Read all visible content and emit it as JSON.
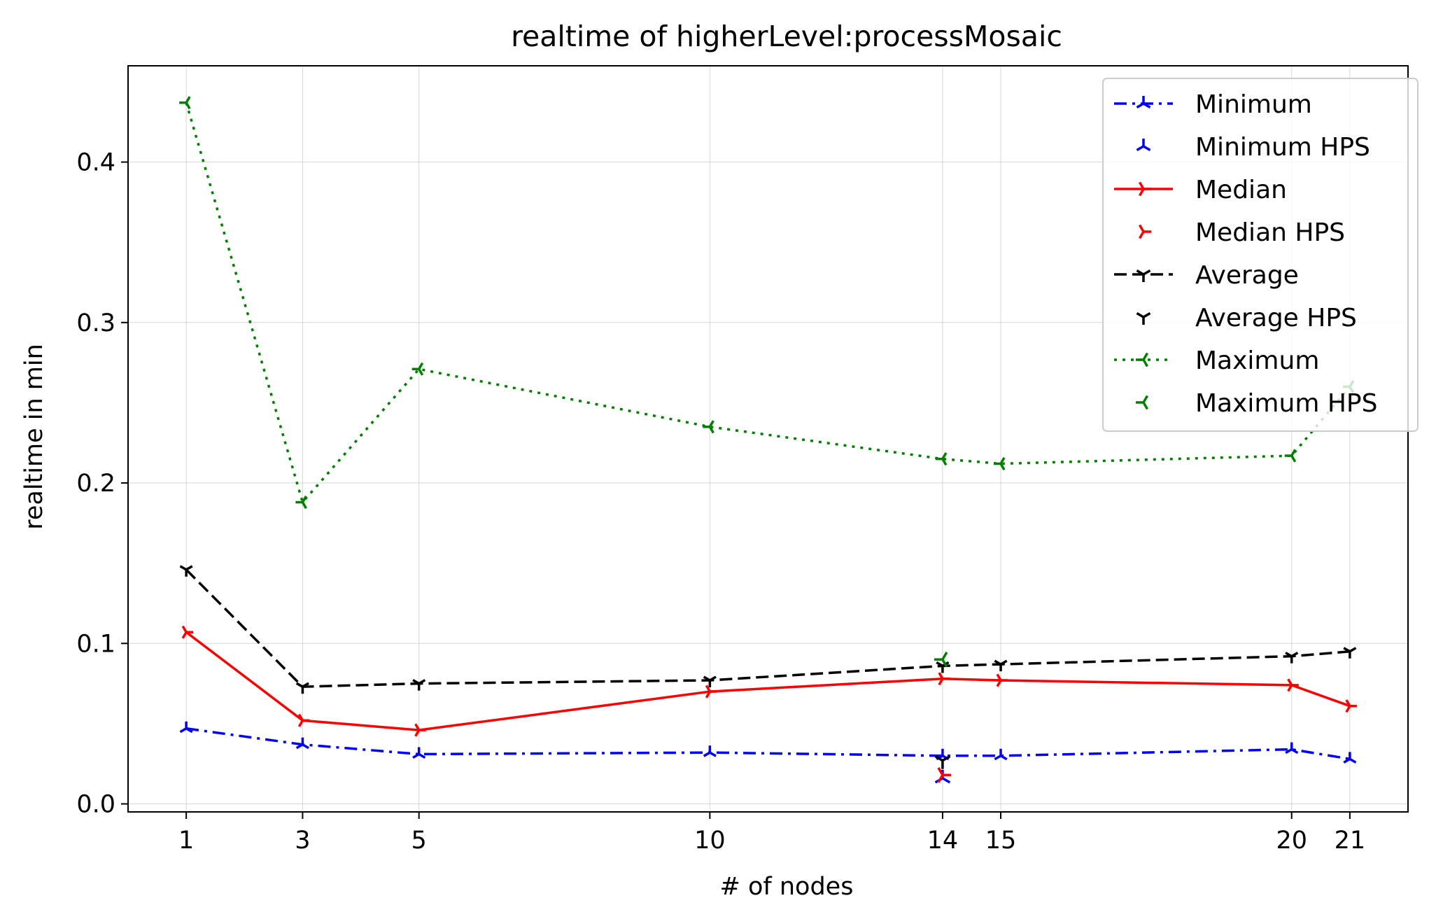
{
  "chart_data": {
    "type": "line",
    "title": "realtime of higherLevel:processMosaic",
    "xlabel": "# of nodes",
    "ylabel": "realtime in min",
    "xlim": [
      0,
      22
    ],
    "ylim": [
      -0.005,
      0.46
    ],
    "grid": true,
    "legend_position": "top-right",
    "x_ticks": [
      1,
      3,
      5,
      10,
      14,
      15,
      20,
      21
    ],
    "y_ticks": [
      0.0,
      0.1,
      0.2,
      0.3,
      0.4
    ],
    "y_tick_labels": [
      "0.0",
      "0.1",
      "0.2",
      "0.3",
      "0.4"
    ],
    "x": [
      1,
      3,
      5,
      10,
      14,
      15,
      20,
      21
    ],
    "series": [
      {
        "name": "Minimum",
        "color": "#0000ff",
        "style": "dashdot",
        "marker": "tri_up",
        "values": [
          0.047,
          0.037,
          0.031,
          0.032,
          0.03,
          0.03,
          0.034,
          0.028
        ]
      },
      {
        "name": "Median",
        "color": "#ff0000",
        "style": "solid",
        "marker": "tri_right",
        "values": [
          0.107,
          0.052,
          0.046,
          0.07,
          0.078,
          0.077,
          0.074,
          0.061
        ]
      },
      {
        "name": "Average",
        "color": "#000000",
        "style": "dashed",
        "marker": "tri_down",
        "values": [
          0.146,
          0.073,
          0.075,
          0.077,
          0.086,
          0.087,
          0.092,
          0.095
        ]
      },
      {
        "name": "Maximum",
        "color": "#008000",
        "style": "dotted",
        "marker": "tri_left",
        "values": [
          0.437,
          0.188,
          0.271,
          0.235,
          0.215,
          0.212,
          0.217,
          0.26
        ]
      }
    ],
    "hps_points": [
      {
        "name": "Minimum HPS",
        "color": "#0000ff",
        "marker": "tri_up",
        "x": 14,
        "y": 0.016
      },
      {
        "name": "Median HPS",
        "color": "#ff0000",
        "marker": "tri_right",
        "x": 14,
        "y": 0.018
      },
      {
        "name": "Average HPS",
        "color": "#000000",
        "marker": "tri_down",
        "x": 14,
        "y": 0.027
      },
      {
        "name": "Maximum HPS",
        "color": "#008000",
        "marker": "tri_left",
        "x": 14,
        "y": 0.09
      }
    ],
    "legend": [
      {
        "label": "Minimum",
        "kind": "line",
        "ref": "Minimum"
      },
      {
        "label": "Minimum HPS",
        "kind": "marker",
        "ref": "Minimum"
      },
      {
        "label": "Median",
        "kind": "line",
        "ref": "Median"
      },
      {
        "label": "Median HPS",
        "kind": "marker",
        "ref": "Median"
      },
      {
        "label": "Average",
        "kind": "line",
        "ref": "Average"
      },
      {
        "label": "Average HPS",
        "kind": "marker",
        "ref": "Average"
      },
      {
        "label": "Maximum",
        "kind": "line",
        "ref": "Maximum"
      },
      {
        "label": "Maximum HPS",
        "kind": "marker",
        "ref": "Maximum"
      }
    ]
  }
}
